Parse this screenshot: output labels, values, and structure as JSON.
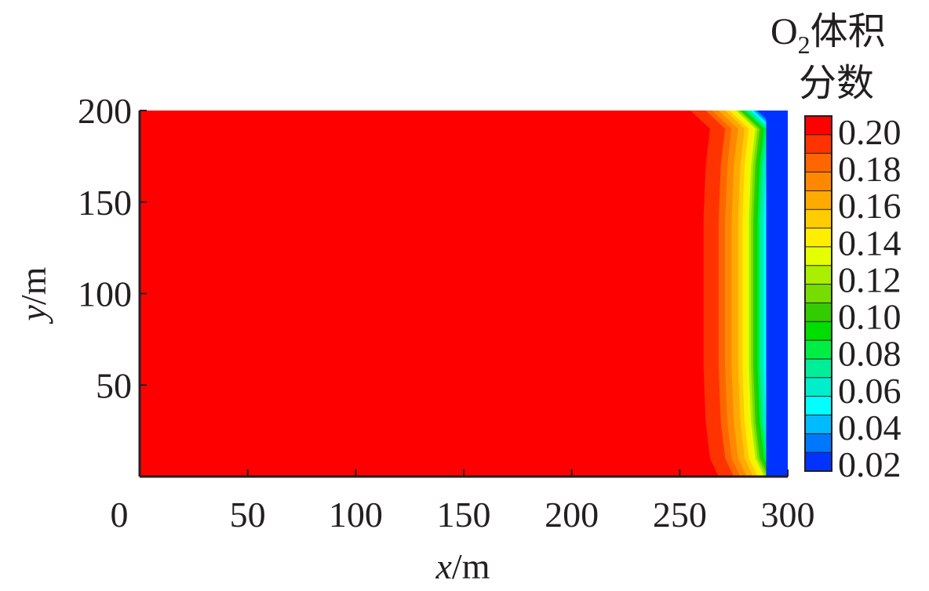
{
  "chart_data": {
    "type": "heatmap",
    "xlabel": {
      "var": "x",
      "unit": "/m"
    },
    "ylabel": {
      "var": "y",
      "unit": "/m"
    },
    "xlim": [
      0,
      300
    ],
    "ylim": [
      0,
      200
    ],
    "x_ticks": [
      "0",
      "50",
      "100",
      "150",
      "200",
      "250",
      "300"
    ],
    "y_ticks": [
      "50",
      "100",
      "150",
      "200"
    ],
    "colorbar": {
      "title_line1": "O",
      "title_sub": "2",
      "title_line1_rest": "体积",
      "title_line2": "分数",
      "labels": [
        "0.20",
        "0.18",
        "0.16",
        "0.14",
        "0.12",
        "0.10",
        "0.08",
        "0.06",
        "0.04",
        "0.02"
      ],
      "levels": [
        0.2,
        0.19,
        0.18,
        0.17,
        0.16,
        0.15,
        0.14,
        0.13,
        0.12,
        0.11,
        0.1,
        0.09,
        0.08,
        0.07,
        0.06,
        0.05,
        0.04,
        0.03,
        0.02
      ],
      "colors": [
        "#ff0000",
        "#ff3300",
        "#ff6600",
        "#ff8800",
        "#ffaa00",
        "#ffcc00",
        "#ffee00",
        "#e6ff00",
        "#aaee00",
        "#77dd00",
        "#33cc00",
        "#00dd00",
        "#00ee44",
        "#00ee99",
        "#00eecc",
        "#00ffff",
        "#00bbff",
        "#0077ff",
        "#0033ff"
      ]
    },
    "front_profile": {
      "y": [
        0,
        10,
        30,
        60,
        100,
        140,
        170,
        190,
        200
      ],
      "x_start": [
        268,
        264,
        262,
        261,
        261,
        261,
        262,
        264,
        255
      ]
    },
    "front_band_widths_m": [
      7,
      3,
      3,
      3,
      2,
      2,
      1,
      1,
      1,
      1,
      1,
      1,
      1,
      1,
      1,
      1,
      1,
      1
    ],
    "low_region_x_start": 290
  }
}
